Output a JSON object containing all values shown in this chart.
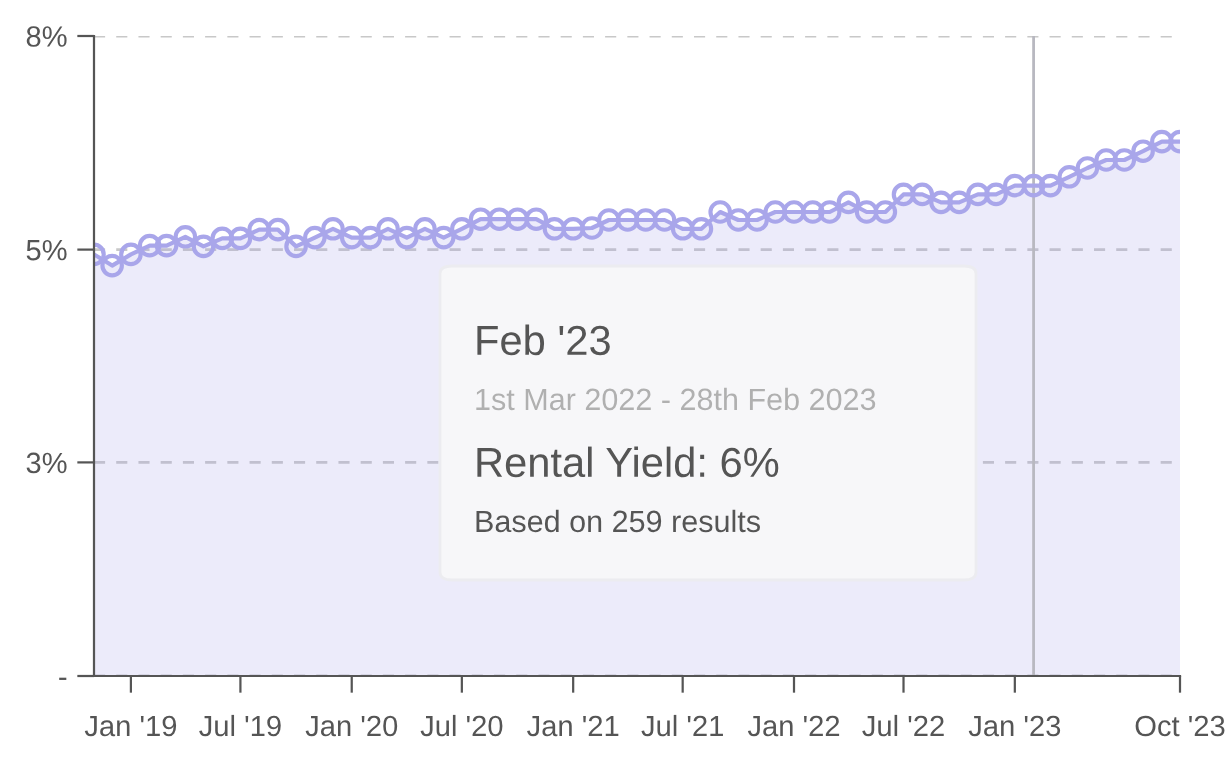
{
  "chart_data": {
    "type": "area",
    "x": [
      "2018-11",
      "2018-12",
      "2019-01",
      "2019-02",
      "2019-03",
      "2019-04",
      "2019-05",
      "2019-06",
      "2019-07",
      "2019-08",
      "2019-09",
      "2019-10",
      "2019-11",
      "2019-12",
      "2020-01",
      "2020-02",
      "2020-03",
      "2020-04",
      "2020-05",
      "2020-06",
      "2020-07",
      "2020-08",
      "2020-09",
      "2020-10",
      "2020-11",
      "2020-12",
      "2021-01",
      "2021-02",
      "2021-03",
      "2021-04",
      "2021-05",
      "2021-06",
      "2021-07",
      "2021-08",
      "2021-09",
      "2021-10",
      "2021-11",
      "2021-12",
      "2022-01",
      "2022-02",
      "2022-03",
      "2022-04",
      "2022-05",
      "2022-06",
      "2022-07",
      "2022-08",
      "2022-09",
      "2022-10",
      "2022-11",
      "2022-12",
      "2023-01",
      "2023-02",
      "2023-03",
      "2023-04",
      "2023-05",
      "2023-06",
      "2023-07",
      "2023-08",
      "2023-09",
      "2023-10"
    ],
    "series": [
      {
        "color": "#a9a6ea",
        "values": [
          5.27,
          5.13,
          5.27,
          5.38,
          5.38,
          5.49,
          5.37,
          5.47,
          5.47,
          5.58,
          5.58,
          5.37,
          5.48,
          5.59,
          5.48,
          5.48,
          5.59,
          5.48,
          5.59,
          5.48,
          5.59,
          5.71,
          5.71,
          5.71,
          5.71,
          5.59,
          5.59,
          5.6,
          5.7,
          5.7,
          5.7,
          5.7,
          5.59,
          5.59,
          5.8,
          5.7,
          5.7,
          5.8,
          5.8,
          5.8,
          5.8,
          5.92,
          5.8,
          5.8,
          6.02,
          6.02,
          5.92,
          5.92,
          6.02,
          6.02,
          6.13,
          6.13,
          6.13,
          6.24,
          6.35,
          6.45,
          6.45,
          6.56,
          6.68,
          6.68
        ]
      }
    ],
    "xlim": [
      "2018-11",
      "2023-10"
    ],
    "xticks": [
      {
        "value": "2019-01",
        "label": "Jan '19"
      },
      {
        "value": "2019-07",
        "label": "Jul '19"
      },
      {
        "value": "2020-01",
        "label": "Jan '20"
      },
      {
        "value": "2020-07",
        "label": "Jul '20"
      },
      {
        "value": "2021-01",
        "label": "Jan '21"
      },
      {
        "value": "2021-07",
        "label": "Jul '21"
      },
      {
        "value": "2022-01",
        "label": "Jan '22"
      },
      {
        "value": "2022-07",
        "label": "Jul '22"
      },
      {
        "value": "2023-01",
        "label": "Jan '23"
      },
      {
        "value": "2023-10",
        "label": "Oct '23"
      }
    ],
    "ylim": [
      0,
      8
    ],
    "yticks": [
      {
        "value": 0,
        "label": "-"
      },
      {
        "value": 2.67,
        "label": "3%"
      },
      {
        "value": 5.33,
        "label": "5%"
      },
      {
        "value": 8,
        "label": "8%"
      }
    ],
    "grid": "y",
    "marker": "circle",
    "line_style": "solid",
    "legend": false,
    "ref_lines": [
      {
        "axis": "x",
        "value": "2023-02",
        "color": "#b8b8c0"
      }
    ],
    "annotations": [
      "Feb '23",
      "1st Mar 2022 - 28th Feb 2023",
      "Rental Yield: 6%",
      "Based on 259 results"
    ]
  }
}
